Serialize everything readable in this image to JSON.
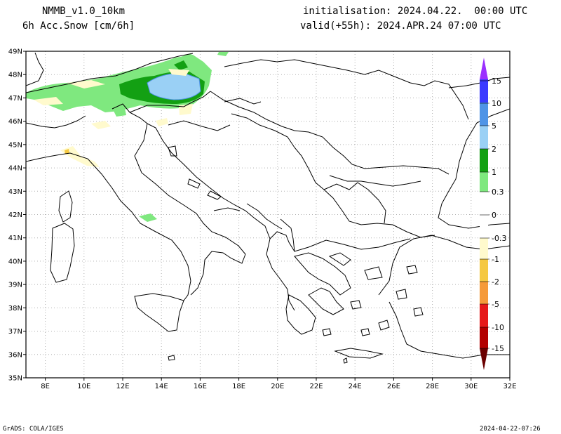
{
  "header": {
    "model": "NMMB_v1.0_10km",
    "field": "6h Acc.Snow [cm/6h]",
    "init": "initialisation: 2024.04.22.  00:00 UTC",
    "valid": "valid(+55h): 2024.APR.24 07:00 UTC"
  },
  "footer": {
    "left": "GrADS: COLA/IGES",
    "right": "2024-04-22-07:26"
  },
  "map": {
    "lon_range": [
      7,
      32
    ],
    "lat_range": [
      35,
      49
    ],
    "lon_ticks": [
      "8E",
      "10E",
      "12E",
      "14E",
      "16E",
      "18E",
      "20E",
      "22E",
      "24E",
      "26E",
      "28E",
      "30E",
      "32E"
    ],
    "lat_ticks": [
      "49N",
      "48N",
      "47N",
      "46N",
      "45N",
      "44N",
      "43N",
      "42N",
      "41N",
      "40N",
      "39N",
      "38N",
      "37N",
      "36N",
      "35N"
    ],
    "gridlines": true,
    "land_color": "#ffffff",
    "coast_color": "#000000"
  },
  "colorbar": {
    "labels": [
      "15",
      "10",
      "5",
      "2",
      "1",
      "0.3",
      "0",
      "-0.3",
      "-1",
      "-2",
      "-5",
      "-10",
      "-15"
    ],
    "colors": {
      "gt15": "#9b30ff",
      "10to15": "#3b3bff",
      "5to10": "#4f94e6",
      "2to5": "#9ad0f5",
      "1to2": "#13a013",
      "0_3to1": "#7fe87f",
      "zero": "#ffffff",
      "m0_3": "#fffacd",
      "m1": "#f5c842",
      "m2": "#f59a3a",
      "m5": "#e61a1a",
      "m10": "#b30000",
      "lt15": "#6b0000"
    }
  }
}
